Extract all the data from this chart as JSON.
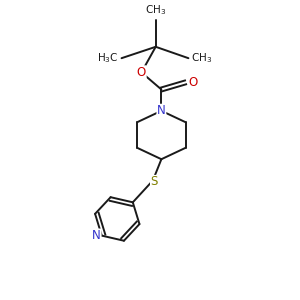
{
  "line_color": "#1a1a1a",
  "N_color": "#3333cc",
  "O_color": "#cc0000",
  "S_color": "#808000",
  "figsize": [
    3.0,
    3.0
  ],
  "dpi": 100,
  "lw": 1.4,
  "fs": 7.5,
  "xlim": [
    0,
    10
  ],
  "ylim": [
    0,
    10
  ]
}
